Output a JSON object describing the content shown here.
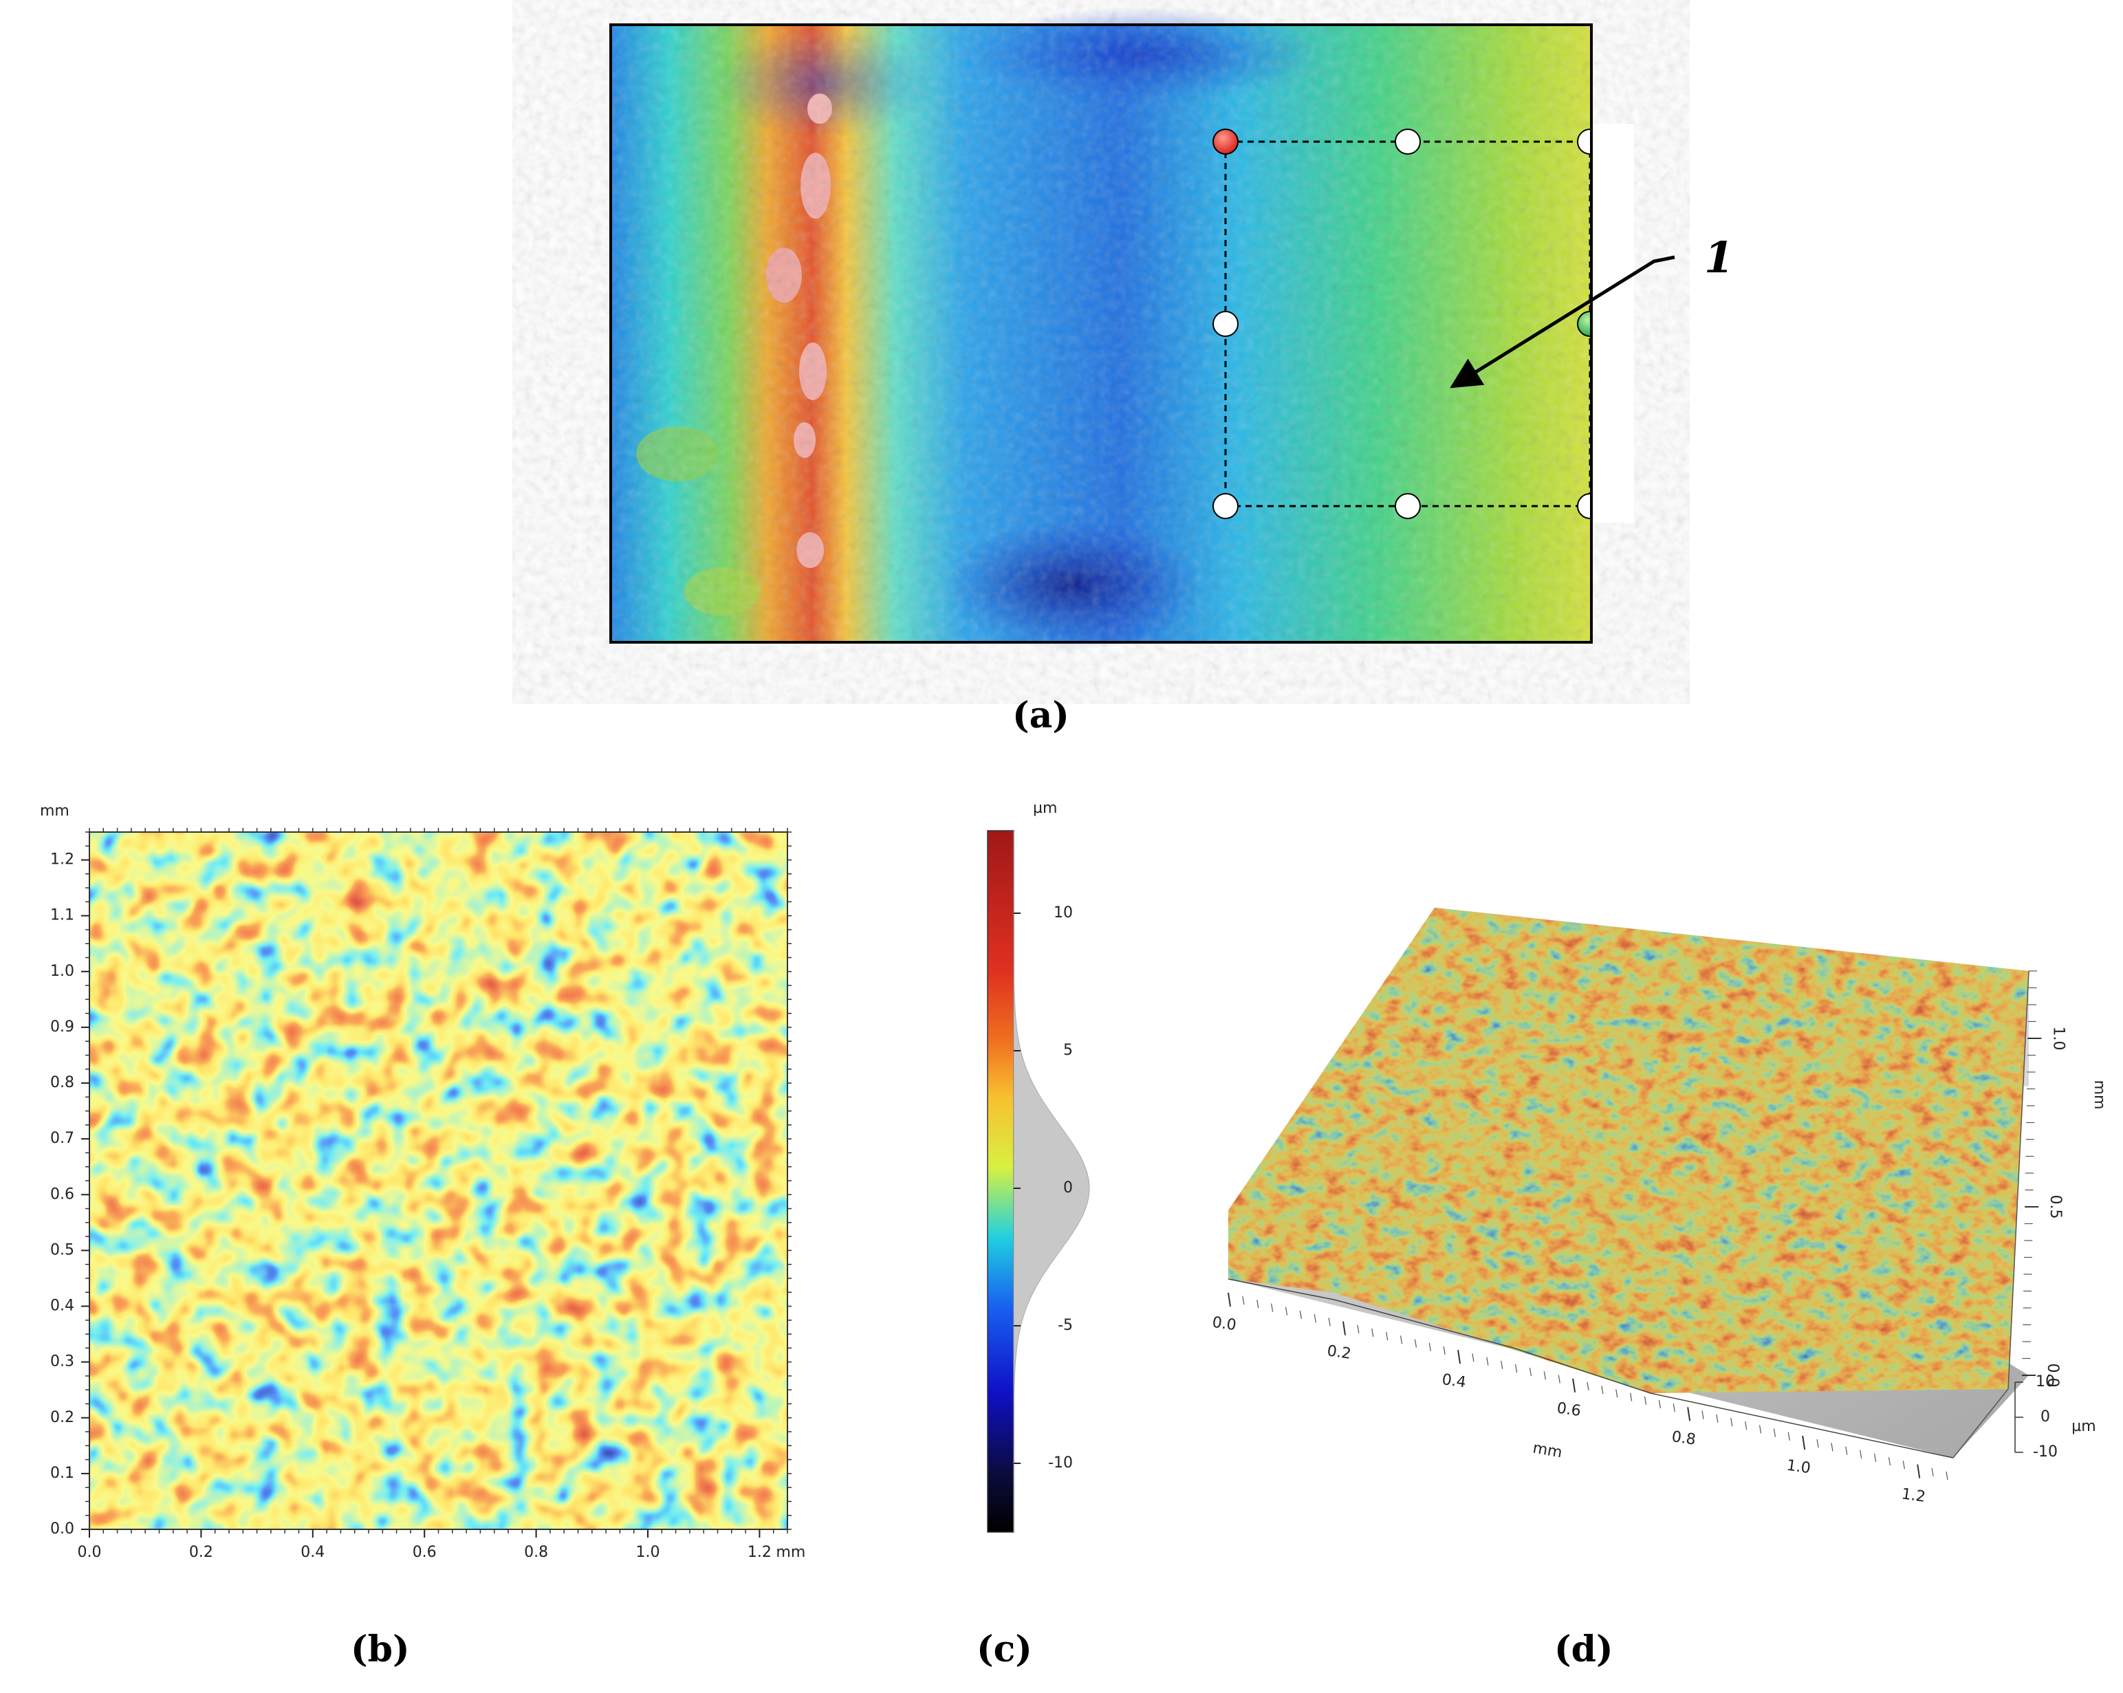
{
  "figure": {
    "panels": [
      {
        "id": "a",
        "label": "(a)",
        "description": "optical height map with selection rectangle",
        "callout_label": "1"
      },
      {
        "id": "b",
        "label": "(b)",
        "axis_unit": "mm"
      },
      {
        "id": "c",
        "label": "(c)",
        "axis_unit": "µm"
      },
      {
        "id": "d",
        "label": "(d)",
        "axis_unit_xy": "mm",
        "axis_unit_z": "µm"
      }
    ]
  },
  "chart_data": [
    {
      "type": "heatmap",
      "panel": "b",
      "title": "",
      "xlabel": "mm",
      "ylabel": "mm",
      "xlim": [
        0,
        1.25
      ],
      "ylim": [
        0,
        1.25
      ],
      "x_ticks": [
        "0.0",
        "0.2",
        "0.4",
        "0.6",
        "0.8",
        "1.0",
        "1.2"
      ],
      "x_unit_suffix": "mm",
      "y_ticks": [
        "0.0",
        "0.1",
        "0.2",
        "0.3",
        "0.4",
        "0.5",
        "0.6",
        "0.7",
        "0.8",
        "0.9",
        "1.0",
        "1.1",
        "1.2"
      ],
      "y_unit_label": "mm"
    },
    {
      "type": "colorbar",
      "panel": "c",
      "unit": "µm",
      "range": [
        -12.5,
        13
      ],
      "ticks": [
        "10",
        "5",
        "0",
        "-5",
        "-10"
      ],
      "tick_values": [
        10,
        5,
        0,
        -5,
        -10
      ],
      "histogram": {
        "mean": 0,
        "std": 2.3
      }
    },
    {
      "type": "surface3d",
      "panel": "d",
      "x_ticks": [
        "0.0",
        "0.2",
        "0.4",
        "0.6",
        "0.8",
        "1.0",
        "1.2"
      ],
      "x_unit": "mm",
      "y_ticks": [
        "0.0",
        "0.5",
        "1.0"
      ],
      "y_unit": "mm",
      "z_ticks": [
        "10",
        "0",
        "-10"
      ],
      "z_unit": "µm"
    }
  ]
}
